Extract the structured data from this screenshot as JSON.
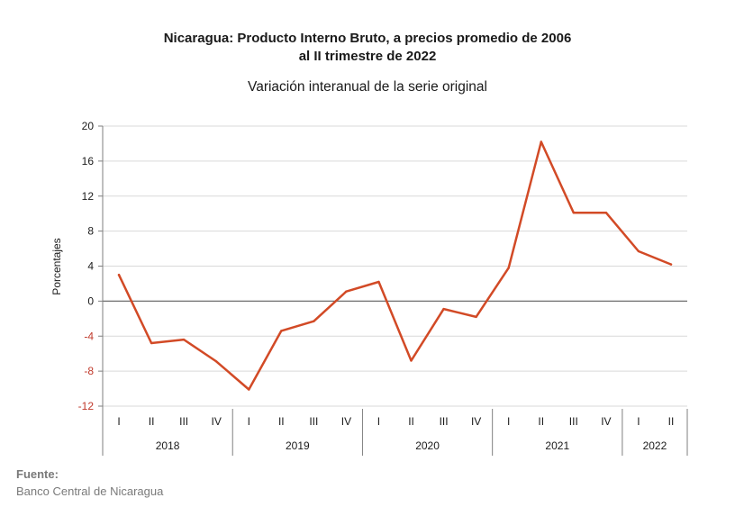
{
  "chart_data": {
    "type": "line",
    "title_line1": "Nicaragua: Producto Interno Bruto, a precios promedio de 2006",
    "title_line2": "al II trimestre de 2022",
    "subtitle": "Variación interanual de la serie original",
    "ylabel": "Porcentajes",
    "ylim": [
      -12,
      20
    ],
    "yticks": [
      20,
      16,
      12,
      8,
      4,
      0,
      -4,
      -8,
      -12
    ],
    "grid": true,
    "quarters": [
      "I",
      "II",
      "III",
      "IV",
      "I",
      "II",
      "III",
      "IV",
      "I",
      "II",
      "III",
      "IV",
      "I",
      "II",
      "III",
      "IV",
      "I",
      "II"
    ],
    "years": [
      {
        "label": "2018",
        "count": 4
      },
      {
        "label": "2019",
        "count": 4
      },
      {
        "label": "2020",
        "count": 4
      },
      {
        "label": "2021",
        "count": 4
      },
      {
        "label": "2022",
        "count": 2
      }
    ],
    "series": [
      {
        "values": [
          3.0,
          -4.8,
          -4.4,
          -6.9,
          -10.1,
          -3.4,
          -2.3,
          1.1,
          2.2,
          -6.8,
          -0.9,
          -1.8,
          3.8,
          18.2,
          10.1,
          10.1,
          5.7,
          4.2
        ]
      }
    ],
    "line_color": "#d24a26"
  },
  "source": {
    "label": "Fuente:",
    "text": "Banco Central de Nicaragua"
  }
}
